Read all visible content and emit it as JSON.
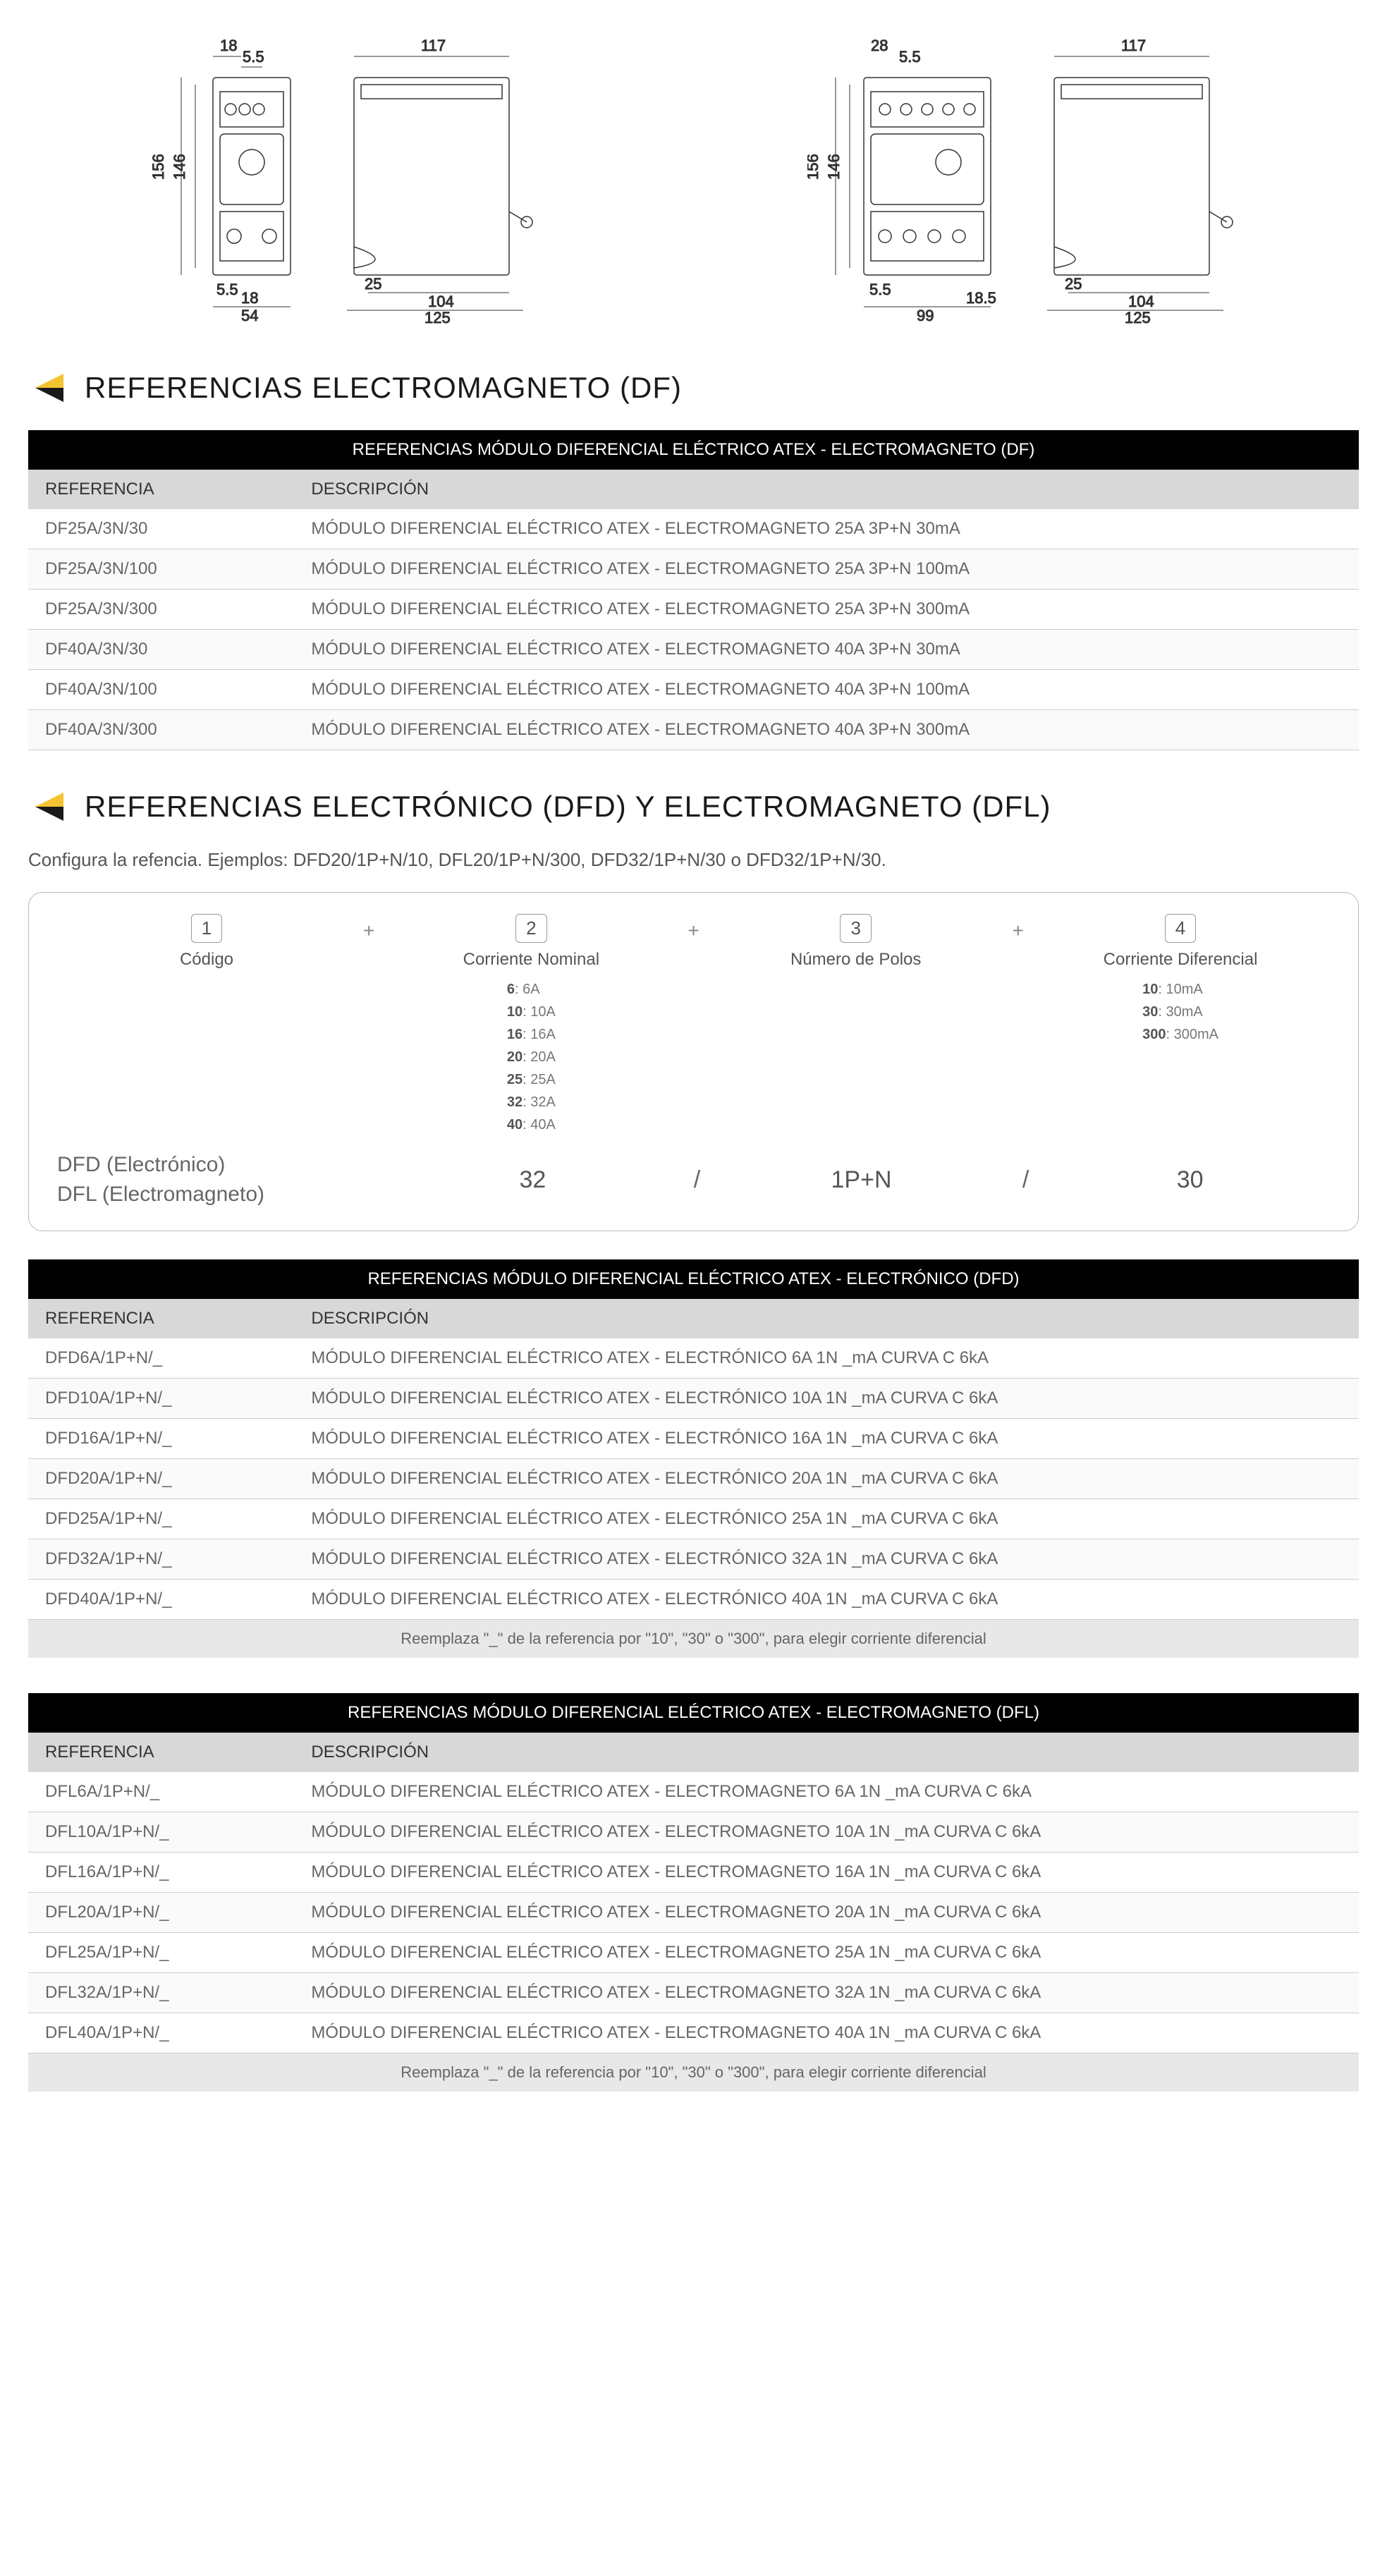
{
  "diagrams": {
    "left_group": {
      "front": {
        "w_top": "117",
        "h_left": "156",
        "h_left2": "146",
        "w_bottom_small": "54",
        "top_small1": "18",
        "top_small2": "5.5",
        "bot_small1": "5.5",
        "bot_small2": "18"
      },
      "side": {
        "w_top": "117",
        "w_bot_large": "125",
        "w_bot_small": "104",
        "bot_offset": "25"
      }
    },
    "right_group": {
      "front": {
        "h_left": "156",
        "h_left2": "146",
        "w_bottom": "99",
        "top_small1": "28",
        "top_small2": "5.5",
        "bot_small1": "5.5",
        "bot_small2": "18.5"
      },
      "side": {
        "w_top": "117",
        "w_bot_large": "125",
        "w_bot_small": "104",
        "bot_offset": "25"
      }
    }
  },
  "sections": {
    "df": {
      "title": "REFERENCIAS ELECTROMAGNETO (DF)"
    },
    "dfd_dfl": {
      "title": "REFERENCIAS ELECTRÓNICO (DFD) Y ELECTROMAGNETO (DFL)"
    }
  },
  "subtitle_config": "Configura la refencia. Ejemplos: DFD20/1P+N/10, DFL20/1P+N/300, DFD32/1P+N/30 o DFD32/1P+N/30.",
  "table_df": {
    "title": "REFERENCIAS MÓDULO DIFERENCIAL ELÉCTRICO ATEX - ELECTROMAGNETO (DF)",
    "col_ref": "REFERENCIA",
    "col_desc": "DESCRIPCIÓN",
    "rows": [
      {
        "ref": "DF25A/3N/30",
        "desc": "MÓDULO DIFERENCIAL ELÉCTRICO ATEX - ELECTROMAGNETO 25A 3P+N 30mA"
      },
      {
        "ref": "DF25A/3N/100",
        "desc": "MÓDULO DIFERENCIAL ELÉCTRICO ATEX - ELECTROMAGNETO 25A 3P+N 100mA"
      },
      {
        "ref": "DF25A/3N/300",
        "desc": "MÓDULO DIFERENCIAL ELÉCTRICO ATEX - ELECTROMAGNETO 25A 3P+N 300mA"
      },
      {
        "ref": "DF40A/3N/30",
        "desc": "MÓDULO DIFERENCIAL ELÉCTRICO ATEX - ELECTROMAGNETO 40A 3P+N 30mA"
      },
      {
        "ref": "DF40A/3N/100",
        "desc": "MÓDULO DIFERENCIAL ELÉCTRICO ATEX - ELECTROMAGNETO 40A 3P+N 100mA"
      },
      {
        "ref": "DF40A/3N/300",
        "desc": "MÓDULO DIFERENCIAL ELÉCTRICO ATEX - ELECTROMAGNETO 40A 3P+N 300mA"
      }
    ]
  },
  "config": {
    "col1": {
      "num": "1",
      "label": "Código"
    },
    "col2": {
      "num": "2",
      "label": "Corriente Nominal",
      "options": [
        [
          "6",
          "6A"
        ],
        [
          "10",
          "10A"
        ],
        [
          "16",
          "16A"
        ],
        [
          "20",
          "20A"
        ],
        [
          "25",
          "25A"
        ],
        [
          "32",
          "32A"
        ],
        [
          "40",
          "40A"
        ]
      ]
    },
    "col3": {
      "num": "3",
      "label": "Número de Polos"
    },
    "col4": {
      "num": "4",
      "label": "Corriente Diferencial",
      "options": [
        [
          "10",
          "10mA"
        ],
        [
          "30",
          "30mA"
        ],
        [
          "300",
          "300mA"
        ]
      ]
    },
    "bottom": {
      "left1": "DFD (Electrónico)",
      "left2": "DFL (Electromagneto)",
      "v2": "32",
      "v3": "1P+N",
      "v4": "30",
      "sep": "/"
    }
  },
  "table_dfd": {
    "title": "REFERENCIAS MÓDULO DIFERENCIAL ELÉCTRICO ATEX - ELECTRÓNICO (DFD)",
    "col_ref": "REFERENCIA",
    "col_desc": "DESCRIPCIÓN",
    "rows": [
      {
        "ref": "DFD6A/1P+N/_",
        "desc": "MÓDULO DIFERENCIAL ELÉCTRICO ATEX - ELECTRÓNICO 6A 1N _mA CURVA C 6kA"
      },
      {
        "ref": "DFD10A/1P+N/_",
        "desc": "MÓDULO DIFERENCIAL ELÉCTRICO ATEX - ELECTRÓNICO 10A 1N _mA CURVA C 6kA"
      },
      {
        "ref": "DFD16A/1P+N/_",
        "desc": "MÓDULO DIFERENCIAL ELÉCTRICO ATEX - ELECTRÓNICO 16A 1N _mA CURVA C 6kA"
      },
      {
        "ref": "DFD20A/1P+N/_",
        "desc": "MÓDULO DIFERENCIAL ELÉCTRICO ATEX - ELECTRÓNICO 20A 1N _mA CURVA C 6kA"
      },
      {
        "ref": "DFD25A/1P+N/_",
        "desc": "MÓDULO DIFERENCIAL ELÉCTRICO ATEX - ELECTRÓNICO 25A 1N _mA CURVA C 6kA"
      },
      {
        "ref": "DFD32A/1P+N/_",
        "desc": "MÓDULO DIFERENCIAL ELÉCTRICO ATEX - ELECTRÓNICO 32A 1N _mA CURVA C 6kA"
      },
      {
        "ref": "DFD40A/1P+N/_",
        "desc": "MÓDULO DIFERENCIAL ELÉCTRICO ATEX - ELECTRÓNICO 40A 1N _mA CURVA C 6kA"
      }
    ],
    "note": "Reemplaza \"_\" de la referencia por \"10\", \"30\" o \"300\", para elegir corriente diferencial"
  },
  "table_dfl": {
    "title": "REFERENCIAS MÓDULO DIFERENCIAL ELÉCTRICO ATEX - ELECTROMAGNETO (DFL)",
    "col_ref": "REFERENCIA",
    "col_desc": "DESCRIPCIÓN",
    "rows": [
      {
        "ref": "DFL6A/1P+N/_",
        "desc": "MÓDULO DIFERENCIAL ELÉCTRICO ATEX - ELECTROMAGNETO  6A 1N _mA CURVA C 6kA"
      },
      {
        "ref": "DFL10A/1P+N/_",
        "desc": "MÓDULO DIFERENCIAL ELÉCTRICO ATEX - ELECTROMAGNETO  10A 1N _mA CURVA C 6kA"
      },
      {
        "ref": "DFL16A/1P+N/_",
        "desc": "MÓDULO DIFERENCIAL ELÉCTRICO ATEX - ELECTROMAGNETO  16A 1N _mA CURVA C 6kA"
      },
      {
        "ref": "DFL20A/1P+N/_",
        "desc": "MÓDULO DIFERENCIAL ELÉCTRICO ATEX - ELECTROMAGNETO  20A 1N _mA CURVA C 6kA"
      },
      {
        "ref": "DFL25A/1P+N/_",
        "desc": "MÓDULO DIFERENCIAL ELÉCTRICO ATEX - ELECTROMAGNETO  25A 1N _mA CURVA C 6kA"
      },
      {
        "ref": "DFL32A/1P+N/_",
        "desc": "MÓDULO DIFERENCIAL ELÉCTRICO ATEX - ELECTROMAGNETO  32A 1N _mA CURVA C 6kA"
      },
      {
        "ref": "DFL40A/1P+N/_",
        "desc": "MÓDULO DIFERENCIAL ELÉCTRICO ATEX - ELECTROMAGNETO  40A 1N _mA CURVA C 6kA"
      }
    ],
    "note": "Reemplaza \"_\" de la referencia por \"10\", \"30\" o \"300\", para elegir corriente diferencial"
  },
  "colors": {
    "icon_yellow": "#f4c430",
    "icon_black": "#1a1a1a"
  }
}
